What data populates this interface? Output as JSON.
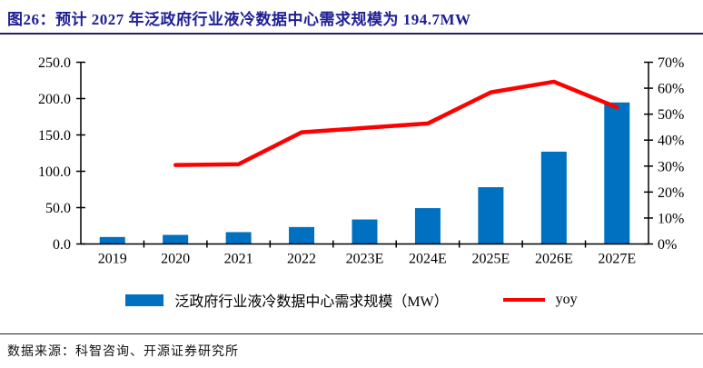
{
  "header": {
    "title": "图26：预计 2027 年泛政府行业液冷数据中心需求规模为 194.7MW"
  },
  "footer": {
    "source": "数据来源：科智咨询、开源证券研究所"
  },
  "colors": {
    "bar_blue": "#0070C0",
    "line_red": "#FF0000",
    "title_navy": "#202095",
    "axis_black": "#000000"
  },
  "chart_data": {
    "type": "bar",
    "subtype": "combo-bar-line-dual-axis",
    "categories": [
      "2019",
      "2020",
      "2021",
      "2022",
      "2023E",
      "2024E",
      "2025E",
      "2026E",
      "2027E"
    ],
    "series": [
      {
        "name": "泛政府行业液冷数据中心需求规模（MW）",
        "type": "bar",
        "axis": "left",
        "color": "#0070C0",
        "values": [
          9.6,
          12.5,
          16.3,
          23.3,
          33.7,
          49.3,
          78.1,
          127.0,
          194.7
        ]
      },
      {
        "name": "yoy",
        "type": "line",
        "axis": "right",
        "color": "#FF0000",
        "values": [
          null,
          30.4,
          30.7,
          43.0,
          44.7,
          46.4,
          58.4,
          62.5,
          52.6
        ]
      }
    ],
    "left_axis": {
      "min": 0,
      "max": 250,
      "step": 50,
      "ticks": [
        "250.0",
        "200.0",
        "150.0",
        "100.0",
        "50.0",
        "0.0"
      ]
    },
    "right_axis": {
      "min": 0,
      "max": 70,
      "step": 10,
      "ticks": [
        "70%",
        "60%",
        "50%",
        "40%",
        "30%",
        "20%",
        "10%",
        "0%"
      ]
    },
    "grid": false,
    "legend_position": "bottom"
  }
}
